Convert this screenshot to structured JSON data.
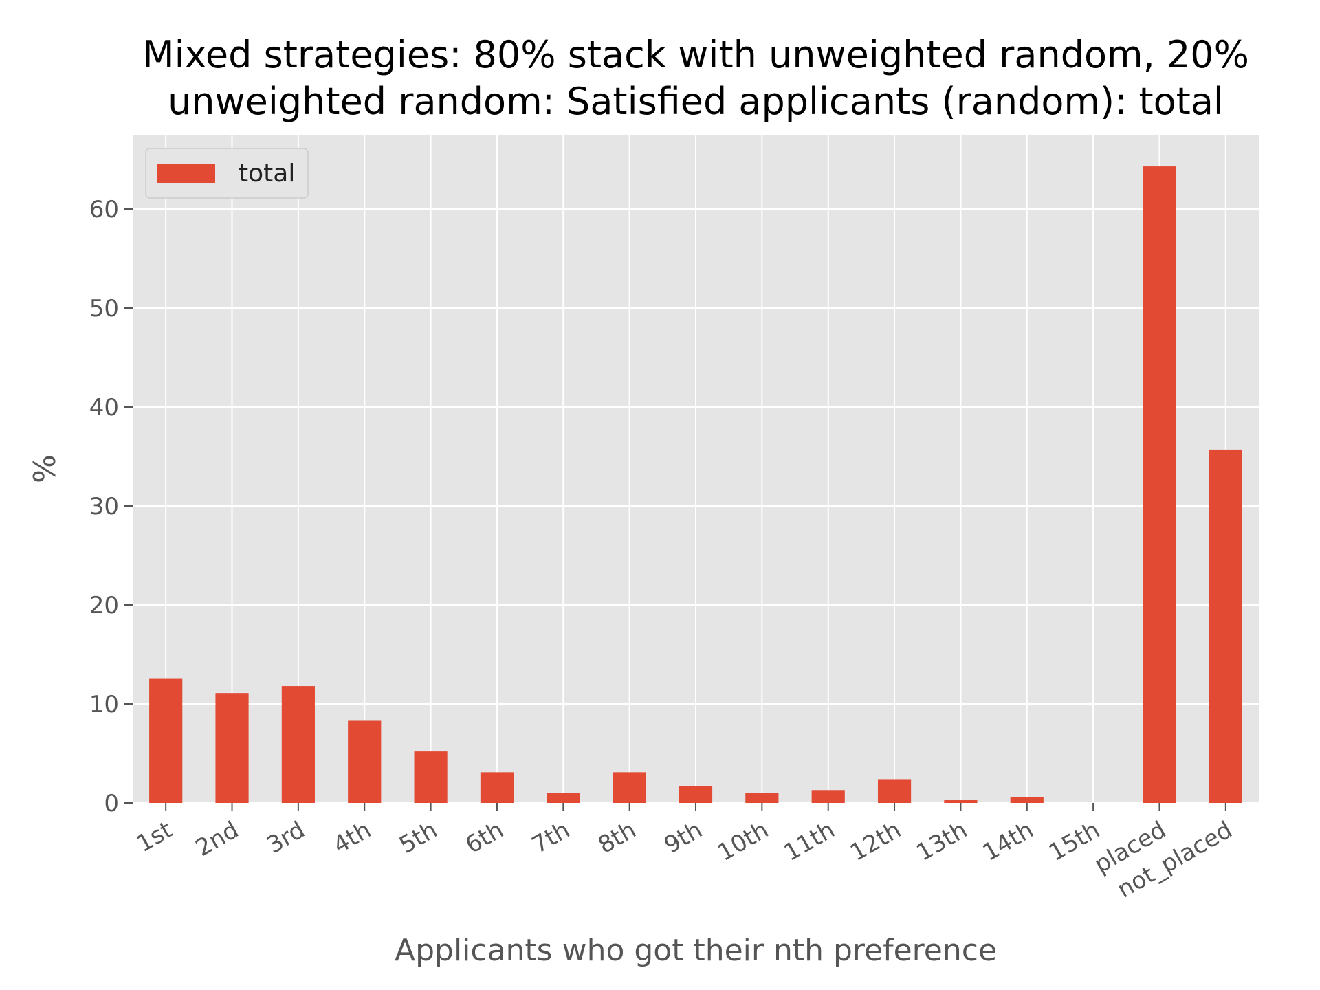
{
  "chart_data": {
    "type": "bar",
    "title_lines": [
      "Mixed strategies: 80% stack with unweighted random, 20%",
      "unweighted random: Satisfied applicants (random): total"
    ],
    "xlabel": "Applicants who got their nth preference",
    "ylabel": "%",
    "categories": [
      "1st",
      "2nd",
      "3rd",
      "4th",
      "5th",
      "6th",
      "7th",
      "8th",
      "9th",
      "10th",
      "11th",
      "12th",
      "13th",
      "14th",
      "15th",
      "placed",
      "not_placed"
    ],
    "series": [
      {
        "name": "total",
        "color": "#E24A33",
        "values": [
          12.6,
          11.1,
          11.8,
          8.3,
          5.2,
          3.1,
          1.0,
          3.1,
          1.7,
          1.0,
          1.3,
          2.4,
          0.3,
          0.6,
          0.0,
          64.3,
          35.7
        ]
      }
    ],
    "yticks": [
      0,
      10,
      20,
      30,
      40,
      50,
      60
    ],
    "ylim": [
      0,
      67.5
    ],
    "grid": true,
    "legend": "top-left",
    "colors": {
      "plot_background": "#E5E5E5",
      "grid": "#FFFFFF",
      "bar": "#E24A33"
    }
  }
}
